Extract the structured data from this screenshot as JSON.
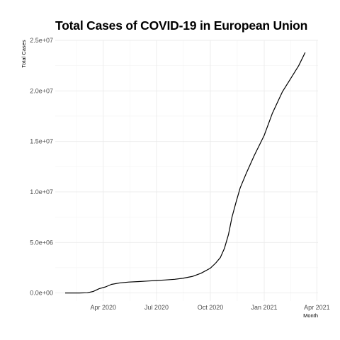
{
  "chart_data": {
    "type": "line",
    "title": "Total Cases of COVID-19 in European Union",
    "xlabel": "Month",
    "ylabel": "Total Cases",
    "xlim": [
      "2020-01-10",
      "2021-04-03"
    ],
    "ylim": [
      -800000,
      25000000
    ],
    "x_ticks": [
      {
        "date": "2020-04-01",
        "label": "Apr 2020"
      },
      {
        "date": "2020-07-01",
        "label": "Jul 2020"
      },
      {
        "date": "2020-10-01",
        "label": "Oct 2020"
      },
      {
        "date": "2021-01-01",
        "label": "Jan 2021"
      },
      {
        "date": "2021-04-01",
        "label": "Apr 2021"
      }
    ],
    "y_ticks": [
      {
        "value": 0,
        "label": "0.0e+00"
      },
      {
        "value": 5000000,
        "label": "5.0e+06"
      },
      {
        "value": 10000000,
        "label": "1.0e+07"
      },
      {
        "value": 15000000,
        "label": "1.5e+07"
      },
      {
        "value": 20000000,
        "label": "2.0e+07"
      },
      {
        "value": 25000000,
        "label": "2.5e+07"
      }
    ],
    "grid": true,
    "series": [
      {
        "color": "#000000",
        "points": [
          [
            "2020-01-27",
            0
          ],
          [
            "2020-02-20",
            0
          ],
          [
            "2020-03-05",
            20000
          ],
          [
            "2020-03-15",
            150000
          ],
          [
            "2020-03-25",
            420000
          ],
          [
            "2020-04-05",
            600000
          ],
          [
            "2020-04-15",
            850000
          ],
          [
            "2020-04-30",
            1000000
          ],
          [
            "2020-05-15",
            1080000
          ],
          [
            "2020-06-01",
            1130000
          ],
          [
            "2020-06-15",
            1180000
          ],
          [
            "2020-07-01",
            1230000
          ],
          [
            "2020-07-15",
            1280000
          ],
          [
            "2020-08-01",
            1350000
          ],
          [
            "2020-08-15",
            1450000
          ],
          [
            "2020-09-01",
            1650000
          ],
          [
            "2020-09-15",
            1950000
          ],
          [
            "2020-10-01",
            2450000
          ],
          [
            "2020-10-10",
            2950000
          ],
          [
            "2020-10-18",
            3500000
          ],
          [
            "2020-10-25",
            4400000
          ],
          [
            "2020-11-01",
            5800000
          ],
          [
            "2020-11-07",
            7500000
          ],
          [
            "2020-11-14",
            9000000
          ],
          [
            "2020-11-21",
            10400000
          ],
          [
            "2020-12-01",
            11800000
          ],
          [
            "2020-12-15",
            13600000
          ],
          [
            "2021-01-01",
            15600000
          ],
          [
            "2021-01-15",
            17800000
          ],
          [
            "2021-02-01",
            19900000
          ],
          [
            "2021-02-15",
            21200000
          ],
          [
            "2021-03-01",
            22500000
          ],
          [
            "2021-03-12",
            23800000
          ]
        ]
      }
    ]
  }
}
